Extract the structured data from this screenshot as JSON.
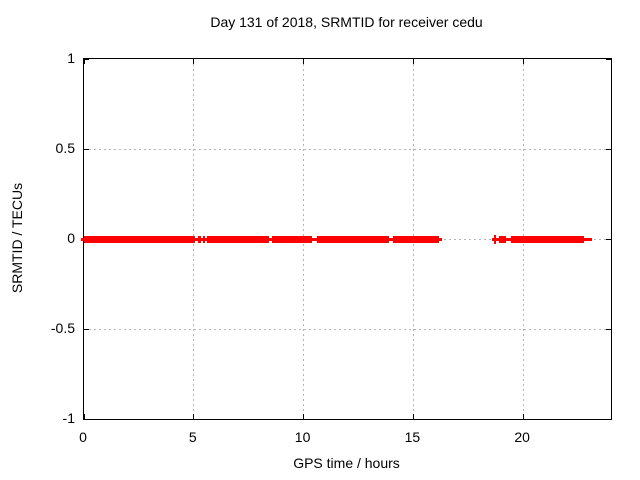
{
  "chart_data": {
    "type": "scatter",
    "title": "Day 131 of 2018, SRMTID for receiver cedu",
    "xlabel": "GPS time / hours",
    "ylabel": "SRMTID / TECUs",
    "xlim": [
      0,
      24
    ],
    "ylim": [
      -1,
      1
    ],
    "grid": true,
    "legend": "none",
    "xticks": [
      {
        "value": 0,
        "label": "0"
      },
      {
        "value": 5,
        "label": "5"
      },
      {
        "value": 10,
        "label": "10"
      },
      {
        "value": 15,
        "label": "15"
      },
      {
        "value": 20,
        "label": "20"
      }
    ],
    "yticks": [
      {
        "value": 1,
        "label": "1"
      },
      {
        "value": 0.5,
        "label": "0.5"
      },
      {
        "value": 0,
        "label": "0"
      },
      {
        "value": -0.5,
        "label": "-0.5"
      },
      {
        "value": -1,
        "label": "-1"
      }
    ],
    "colors": {
      "series": "#ff0000",
      "grid": "#b4b4b4",
      "border": "#000000",
      "background": "#ffffff"
    },
    "series": [
      {
        "name": "SRMTID",
        "marker": "plus",
        "y_value": 0,
        "segments_hours": [
          {
            "start": 0.0,
            "end": 5.07,
            "style": "band"
          },
          {
            "start": 5.19,
            "end": 5.31,
            "style": "band"
          },
          {
            "start": 5.41,
            "end": 5.52,
            "style": "band"
          },
          {
            "start": 5.61,
            "end": 8.41,
            "style": "band"
          },
          {
            "start": 8.56,
            "end": 10.38,
            "style": "band"
          },
          {
            "start": 10.6,
            "end": 13.9,
            "style": "band"
          },
          {
            "start": 14.05,
            "end": 16.18,
            "style": "band"
          },
          {
            "start": 18.6,
            "end": 18.84,
            "style": "marker"
          },
          {
            "start": 18.9,
            "end": 19.2,
            "style": "band"
          },
          {
            "start": 19.44,
            "end": 22.78,
            "style": "band"
          },
          {
            "start": 22.78,
            "end": 23.0,
            "style": "tail"
          }
        ]
      }
    ]
  }
}
